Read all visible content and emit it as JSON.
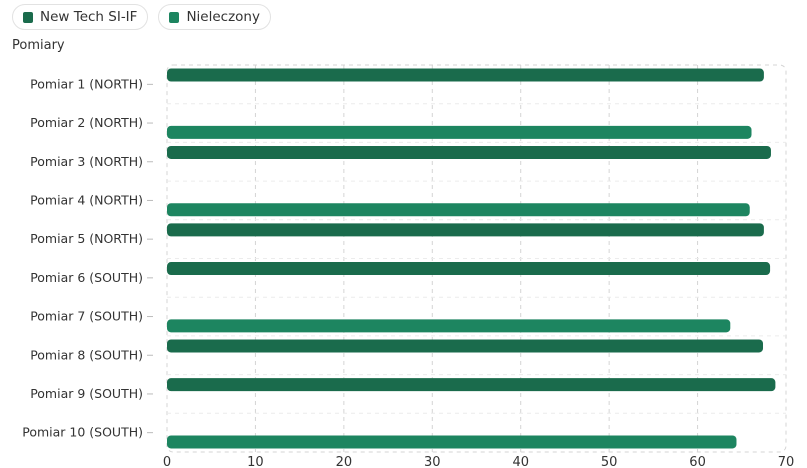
{
  "legend": {
    "items": [
      {
        "label": "New Tech SI-IF",
        "color": "#1a6b4c"
      },
      {
        "label": "Nieleczony",
        "color": "#1d8560"
      }
    ]
  },
  "chart_data": {
    "type": "bar",
    "orientation": "horizontal",
    "ylabel": "Pomiary",
    "xlabel": "",
    "title": "",
    "xlim": [
      0,
      70
    ],
    "xticks": [
      0,
      10,
      20,
      30,
      40,
      50,
      60,
      70
    ],
    "grid": true,
    "legend_position": "top-left",
    "categories": [
      "Pomiar 1 (NORTH)",
      "Pomiar 2 (NORTH)",
      "Pomiar 3 (NORTH)",
      "Pomiar 4 (NORTH)",
      "Pomiar 5 (NORTH)",
      "Pomiar 6 (SOUTH)",
      "Pomiar 7 (SOUTH)",
      "Pomiar 8 (SOUTH)",
      "Pomiar 9 (SOUTH)",
      "Pomiar 10 (SOUTH)"
    ],
    "series": [
      {
        "name": "New Tech SI-IF",
        "color": "#1a6b4c",
        "values": [
          67.5,
          null,
          68.3,
          null,
          67.5,
          68.2,
          null,
          67.4,
          68.8,
          null
        ]
      },
      {
        "name": "Nieleczony",
        "color": "#1d8560",
        "values": [
          null,
          66.1,
          null,
          65.9,
          null,
          null,
          63.7,
          null,
          null,
          64.4
        ]
      }
    ]
  }
}
